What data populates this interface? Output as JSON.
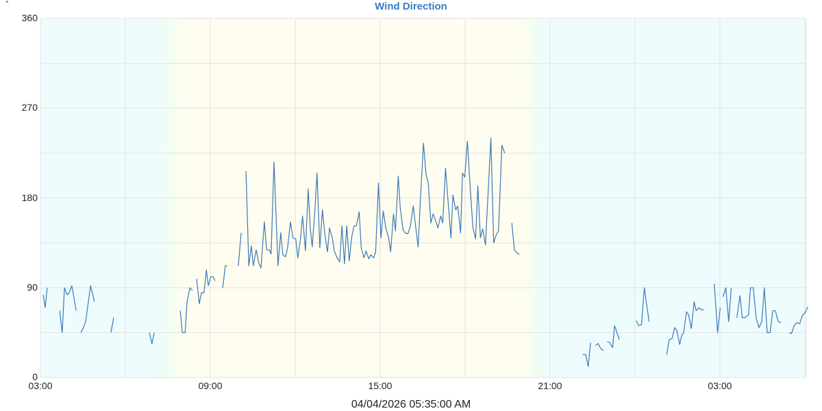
{
  "chart_data": {
    "type": "line",
    "title": "Wind Direction",
    "unit": "°",
    "xlabel": "04/04/2026 05:35:00 AM",
    "ylabel": "°",
    "ylim": [
      0,
      360
    ],
    "yticks": [
      0,
      90,
      180,
      270,
      360
    ],
    "ygrid_step": 45,
    "xticks": [
      "03:00",
      "09:00",
      "15:00",
      "21:00",
      "03:00"
    ],
    "xtick_hours": [
      0,
      6,
      12,
      18,
      24
    ],
    "xgrid_step_hours": 3,
    "x_range_hours": [
      0,
      27.05
    ],
    "x_start_label": "03:00",
    "grid": true,
    "legend": "none",
    "line_color": "#3a78b5",
    "background_bands": [
      {
        "from_h": 0,
        "to_h": 4,
        "color": "#eefcfe"
      },
      {
        "from_h": 4,
        "to_h": 5,
        "color_from": "#eefcfe",
        "color_to": "#fefdf0"
      },
      {
        "from_h": 5,
        "to_h": 17,
        "color": "#fefdf0"
      },
      {
        "from_h": 17,
        "to_h": 18,
        "color_from": "#fefdf0",
        "color_to": "#eefcfe"
      },
      {
        "from_h": 18,
        "to_h": 27.05,
        "color": "#eefcfe"
      }
    ],
    "series": [
      {
        "name": "Wind Direction",
        "segments": [
          [
            [
              0.1,
              83
            ],
            [
              0.17,
              70
            ],
            [
              0.24,
              90
            ]
          ],
          [
            [
              0.68,
              67
            ],
            [
              0.77,
              45
            ],
            [
              0.85,
              90
            ],
            [
              0.94,
              83
            ],
            [
              1.02,
              85
            ],
            [
              1.11,
              92
            ],
            [
              1.26,
              67
            ]
          ],
          [
            [
              1.43,
              45
            ],
            [
              1.52,
              50
            ],
            [
              1.6,
              56
            ],
            [
              1.67,
              71
            ],
            [
              1.77,
              92
            ],
            [
              1.91,
              76
            ]
          ],
          [
            [
              2.49,
              45
            ],
            [
              2.59,
              60
            ]
          ],
          [
            [
              3.85,
              45
            ],
            [
              3.94,
              34
            ],
            [
              4.02,
              45
            ]
          ],
          [
            [
              4.94,
              67
            ],
            [
              5.01,
              45
            ],
            [
              5.11,
              45
            ],
            [
              5.18,
              76
            ],
            [
              5.28,
              90
            ],
            [
              5.37,
              87
            ]
          ],
          [
            [
              5.52,
              99
            ],
            [
              5.61,
              74
            ],
            [
              5.69,
              85
            ],
            [
              5.78,
              85
            ],
            [
              5.86,
              108
            ],
            [
              5.93,
              92
            ],
            [
              6.02,
              101
            ],
            [
              6.1,
              101
            ],
            [
              6.17,
              97
            ]
          ],
          [
            [
              6.44,
              90
            ],
            [
              6.53,
              112
            ],
            [
              6.6,
              112
            ]
          ],
          [
            [
              6.99,
              112
            ],
            [
              7.09,
              145
            ]
          ],
          [
            [
              7.26,
              207
            ],
            [
              7.36,
              112
            ],
            [
              7.45,
              132
            ],
            [
              7.52,
              112
            ],
            [
              7.62,
              128
            ],
            [
              7.72,
              114
            ],
            [
              7.79,
              110
            ],
            [
              7.91,
              156
            ],
            [
              7.99,
              128
            ],
            [
              8.08,
              128
            ],
            [
              8.15,
              124
            ],
            [
              8.25,
              216
            ],
            [
              8.39,
              112
            ],
            [
              8.49,
              145
            ],
            [
              8.56,
              123
            ],
            [
              8.66,
              121
            ],
            [
              8.73,
              130
            ],
            [
              8.83,
              156
            ],
            [
              8.92,
              140
            ],
            [
              9.02,
              139
            ],
            [
              9.09,
              120
            ],
            [
              9.19,
              140
            ],
            [
              9.26,
              162
            ],
            [
              9.36,
              127
            ],
            [
              9.46,
              189
            ],
            [
              9.53,
              150
            ],
            [
              9.6,
              131
            ],
            [
              9.7,
              170
            ],
            [
              9.77,
              205
            ],
            [
              9.87,
              130
            ],
            [
              9.96,
              168
            ],
            [
              10.04,
              145
            ],
            [
              10.14,
              126
            ],
            [
              10.21,
              150
            ],
            [
              10.31,
              140
            ],
            [
              10.38,
              127
            ],
            [
              10.48,
              120
            ],
            [
              10.57,
              116
            ],
            [
              10.65,
              152
            ],
            [
              10.74,
              114
            ],
            [
              10.82,
              152
            ],
            [
              10.91,
              117
            ],
            [
              10.99,
              140
            ],
            [
              11.08,
              152
            ],
            [
              11.16,
              152
            ],
            [
              11.26,
              166
            ],
            [
              11.33,
              130
            ],
            [
              11.43,
              120
            ],
            [
              11.5,
              127
            ],
            [
              11.6,
              119
            ],
            [
              11.67,
              123
            ],
            [
              11.77,
              120
            ],
            [
              11.84,
              126
            ],
            [
              11.94,
              195
            ],
            [
              12.03,
              140
            ],
            [
              12.11,
              167
            ],
            [
              12.2,
              150
            ],
            [
              12.3,
              140
            ],
            [
              12.37,
              126
            ],
            [
              12.47,
              164
            ],
            [
              12.54,
              147
            ],
            [
              12.64,
              202
            ],
            [
              12.71,
              170
            ],
            [
              12.81,
              148
            ],
            [
              12.88,
              145
            ],
            [
              12.98,
              144
            ],
            [
              13.07,
              152
            ],
            [
              13.17,
              172
            ],
            [
              13.24,
              155
            ],
            [
              13.34,
              131
            ],
            [
              13.43,
              183
            ],
            [
              13.53,
              235
            ],
            [
              13.62,
              204
            ],
            [
              13.7,
              195
            ],
            [
              13.79,
              155
            ],
            [
              13.87,
              164
            ],
            [
              13.96,
              157
            ],
            [
              14.04,
              150
            ],
            [
              14.14,
              162
            ],
            [
              14.21,
              155
            ],
            [
              14.31,
              210
            ],
            [
              14.38,
              184
            ],
            [
              14.5,
              140
            ],
            [
              14.57,
              183
            ],
            [
              14.67,
              168
            ],
            [
              14.74,
              172
            ],
            [
              14.84,
              145
            ],
            [
              14.91,
              205
            ],
            [
              14.99,
              201
            ],
            [
              15.08,
              237
            ],
            [
              15.2,
              182
            ],
            [
              15.28,
              150
            ],
            [
              15.37,
              139
            ],
            [
              15.45,
              192
            ],
            [
              15.54,
              140
            ],
            [
              15.62,
              149
            ],
            [
              15.72,
              133
            ],
            [
              15.81,
              183
            ],
            [
              15.91,
              240
            ],
            [
              16.01,
              135
            ],
            [
              16.1,
              143
            ],
            [
              16.18,
              147
            ],
            [
              16.3,
              233
            ],
            [
              16.4,
              225
            ]
          ],
          [
            [
              16.65,
              155
            ],
            [
              16.74,
              128
            ],
            [
              16.86,
              124
            ],
            [
              16.93,
              124
            ]
          ],
          [
            [
              19.16,
              23
            ],
            [
              19.26,
              23
            ],
            [
              19.35,
              11
            ],
            [
              19.43,
              35
            ]
          ],
          [
            [
              19.6,
              32
            ],
            [
              19.7,
              34
            ],
            [
              19.79,
              29
            ],
            [
              19.89,
              27
            ]
          ],
          [
            [
              20.02,
              36
            ],
            [
              20.11,
              35
            ],
            [
              20.21,
              30
            ],
            [
              20.28,
              52
            ],
            [
              20.45,
              38
            ]
          ],
          [
            [
              21.04,
              57
            ],
            [
              21.14,
              52
            ],
            [
              21.23,
              53
            ],
            [
              21.33,
              90
            ],
            [
              21.5,
              56
            ]
          ],
          [
            [
              22.12,
              23
            ],
            [
              22.21,
              38
            ],
            [
              22.31,
              39
            ],
            [
              22.4,
              50
            ],
            [
              22.48,
              47
            ],
            [
              22.58,
              33
            ],
            [
              22.65,
              42
            ],
            [
              22.72,
              45
            ],
            [
              22.82,
              66
            ],
            [
              22.89,
              63
            ],
            [
              22.99,
              49
            ],
            [
              23.09,
              76
            ],
            [
              23.16,
              67
            ],
            [
              23.26,
              70
            ],
            [
              23.33,
              68
            ],
            [
              23.43,
              68
            ]
          ],
          [
            [
              23.8,
              94
            ],
            [
              23.92,
              45
            ],
            [
              24.01,
              70
            ]
          ],
          [
            [
              24.11,
              81
            ],
            [
              24.21,
              90
            ],
            [
              24.31,
              56
            ],
            [
              24.4,
              90
            ]
          ],
          [
            [
              24.6,
              60
            ],
            [
              24.71,
              82
            ],
            [
              24.79,
              60
            ],
            [
              24.89,
              60
            ],
            [
              25.01,
              63
            ],
            [
              25.08,
              90
            ],
            [
              25.18,
              90
            ],
            [
              25.28,
              60
            ],
            [
              25.38,
              50
            ],
            [
              25.48,
              56
            ],
            [
              25.57,
              90
            ],
            [
              25.67,
              45
            ],
            [
              25.77,
              45
            ],
            [
              25.87,
              67
            ],
            [
              25.96,
              67
            ],
            [
              26.06,
              56
            ],
            [
              26.16,
              55
            ]
          ],
          [
            [
              26.45,
              45
            ],
            [
              26.53,
              44
            ],
            [
              26.62,
              52
            ],
            [
              26.72,
              55
            ],
            [
              26.82,
              54
            ],
            [
              26.91,
              62
            ],
            [
              27.01,
              65
            ],
            [
              27.11,
              71
            ]
          ]
        ]
      }
    ]
  }
}
